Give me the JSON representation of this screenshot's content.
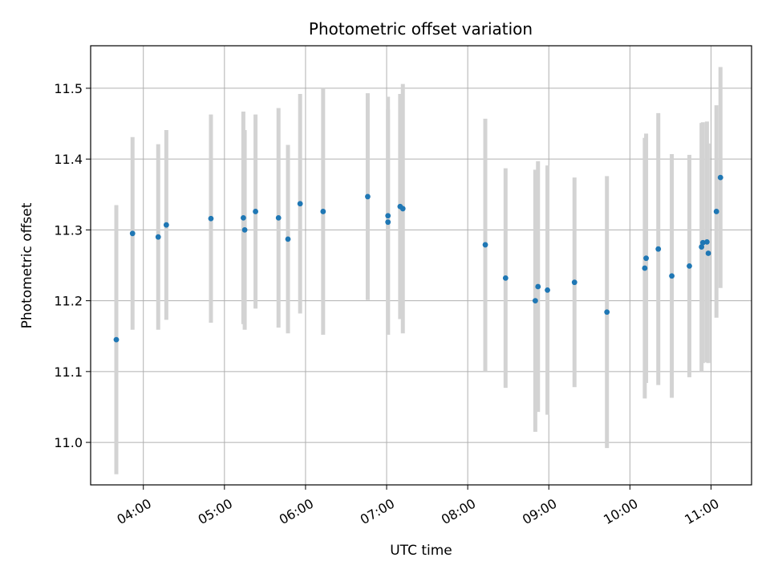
{
  "chart_data": {
    "type": "scatter",
    "title": "Photometric offset variation",
    "xlabel": "UTC time",
    "ylabel": "Photometric offset",
    "xlim": [
      "03:21",
      "11:30"
    ],
    "ylim": [
      10.94,
      11.56
    ],
    "x_ticks": [
      "04:00",
      "05:00",
      "06:00",
      "07:00",
      "08:00",
      "09:00",
      "10:00",
      "11:00"
    ],
    "y_ticks": [
      11.0,
      11.1,
      11.2,
      11.3,
      11.4,
      11.5
    ],
    "grid": true,
    "marker_color": "#1f77b4",
    "errorbar_color": "#d3d3d3",
    "points": [
      {
        "t": "03:40",
        "y": 11.145,
        "err": 0.19
      },
      {
        "t": "03:52",
        "y": 11.295,
        "err": 0.136
      },
      {
        "t": "04:11",
        "y": 11.29,
        "err": 0.131
      },
      {
        "t": "04:17",
        "y": 11.307,
        "err": 0.134
      },
      {
        "t": "04:50",
        "y": 11.316,
        "err": 0.147
      },
      {
        "t": "05:14",
        "y": 11.317,
        "err": 0.15
      },
      {
        "t": "05:15",
        "y": 11.3,
        "err": 0.141
      },
      {
        "t": "05:23",
        "y": 11.326,
        "err": 0.137
      },
      {
        "t": "05:40",
        "y": 11.317,
        "err": 0.155
      },
      {
        "t": "05:47",
        "y": 11.287,
        "err": 0.133
      },
      {
        "t": "05:56",
        "y": 11.337,
        "err": 0.155
      },
      {
        "t": "06:13",
        "y": 11.326,
        "err": 0.174
      },
      {
        "t": "06:46",
        "y": 11.347,
        "err": 0.146
      },
      {
        "t": "07:01",
        "y": 11.32,
        "err": 0.168
      },
      {
        "t": "07:01",
        "y": 11.311,
        "err": 0.159
      },
      {
        "t": "07:10",
        "y": 11.333,
        "err": 0.159
      },
      {
        "t": "07:12",
        "y": 11.33,
        "err": 0.176
      },
      {
        "t": "08:13",
        "y": 11.279,
        "err": 0.178
      },
      {
        "t": "08:28",
        "y": 11.232,
        "err": 0.155
      },
      {
        "t": "08:50",
        "y": 11.2,
        "err": 0.185
      },
      {
        "t": "08:52",
        "y": 11.22,
        "err": 0.177
      },
      {
        "t": "08:59",
        "y": 11.215,
        "err": 0.176
      },
      {
        "t": "09:19",
        "y": 11.226,
        "err": 0.148
      },
      {
        "t": "09:43",
        "y": 11.184,
        "err": 0.192
      },
      {
        "t": "10:11",
        "y": 11.246,
        "err": 0.184
      },
      {
        "t": "10:12",
        "y": 11.26,
        "err": 0.176
      },
      {
        "t": "10:21",
        "y": 11.273,
        "err": 0.192
      },
      {
        "t": "10:31",
        "y": 11.235,
        "err": 0.172
      },
      {
        "t": "10:44",
        "y": 11.249,
        "err": 0.157
      },
      {
        "t": "10:53",
        "y": 11.276,
        "err": 0.175
      },
      {
        "t": "10:54",
        "y": 11.282,
        "err": 0.17
      },
      {
        "t": "10:57",
        "y": 11.283,
        "err": 0.17
      },
      {
        "t": "10:58",
        "y": 11.267,
        "err": 0.155
      },
      {
        "t": "11:04",
        "y": 11.326,
        "err": 0.15
      },
      {
        "t": "11:07",
        "y": 11.374,
        "err": 0.156
      }
    ]
  }
}
